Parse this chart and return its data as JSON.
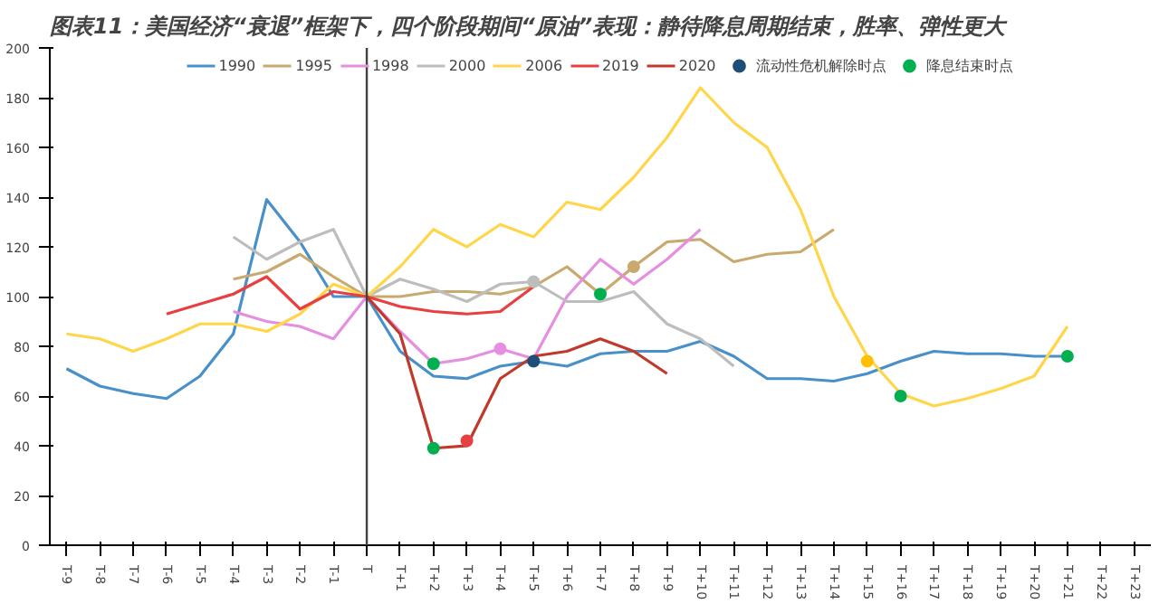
{
  "chart_data": {
    "type": "line",
    "title": "图表11：美国经济“衰退”框架下，四个阶段期间“原油”表现：静待降息周期结束，胜率、弹性更大",
    "categories": [
      "T-9",
      "T-8",
      "T-7",
      "T-6",
      "T-5",
      "T-4",
      "T-3",
      "T-2",
      "T-1",
      "T",
      "T+1",
      "T+2",
      "T+3",
      "T+4",
      "T+5",
      "T+6",
      "T+7",
      "T+8",
      "T+9",
      "T+10",
      "T+11",
      "T+12",
      "T+13",
      "T+14",
      "T+15",
      "T+16",
      "T+17",
      "T+18",
      "T+19",
      "T+20",
      "T+21",
      "T+22",
      "T+23"
    ],
    "ylim": [
      0,
      200
    ],
    "yticks": [
      0,
      20,
      40,
      60,
      80,
      100,
      120,
      140,
      160,
      180,
      200
    ],
    "grid": false,
    "legend": "top",
    "line_style": "solid",
    "marker": "none",
    "ref_lines": [
      {
        "axis": "x",
        "value": "T",
        "color": "#404040"
      }
    ],
    "series": [
      {
        "name": "1990",
        "color": "#4a90c8",
        "values": [
          71,
          64,
          61,
          59,
          68,
          85,
          139,
          122,
          100,
          100,
          78,
          68,
          67,
          72,
          74,
          72,
          77,
          78,
          78,
          82,
          76,
          67,
          67,
          66,
          69,
          74,
          78,
          77,
          77,
          76,
          76,
          null,
          null
        ]
      },
      {
        "name": "1995",
        "color": "#c8a96e",
        "values": [
          null,
          null,
          null,
          null,
          null,
          107,
          110,
          117,
          108,
          100,
          100,
          102,
          102,
          101,
          104,
          112,
          101,
          112,
          122,
          123,
          114,
          117,
          118,
          127,
          null,
          null,
          null,
          null,
          null,
          null,
          null,
          null,
          null
        ]
      },
      {
        "name": "1998",
        "color": "#e58fe0",
        "values": [
          null,
          null,
          null,
          null,
          null,
          94,
          90,
          88,
          83,
          100,
          86,
          73,
          75,
          79,
          75,
          100,
          115,
          105,
          115,
          127,
          null,
          null,
          null,
          null,
          null,
          null,
          null,
          null,
          null,
          null,
          null,
          null,
          null
        ]
      },
      {
        "name": "2000",
        "color": "#bdbdbd",
        "values": [
          null,
          null,
          null,
          null,
          null,
          124,
          115,
          122,
          127,
          100,
          107,
          103,
          98,
          105,
          106,
          98,
          98,
          102,
          89,
          83,
          72,
          null,
          null,
          null,
          null,
          null,
          null,
          null,
          null,
          null,
          null,
          null,
          null
        ]
      },
      {
        "name": "2006",
        "color": "#ffd54a",
        "values": [
          85,
          83,
          78,
          83,
          89,
          89,
          86,
          93,
          105,
          100,
          112,
          127,
          120,
          129,
          124,
          138,
          135,
          148,
          164,
          184,
          170,
          160,
          135,
          100,
          76,
          61,
          56,
          59,
          63,
          68,
          88,
          null,
          null
        ]
      },
      {
        "name": "2019",
        "color": "#e84040",
        "values": [
          null,
          null,
          null,
          93,
          97,
          101,
          108,
          95,
          102,
          100,
          96,
          94,
          93,
          94,
          104,
          null,
          null,
          null,
          null,
          null,
          null,
          null,
          null,
          null,
          null,
          null,
          null,
          null,
          null,
          null,
          null,
          null,
          null
        ]
      },
      {
        "name": "2020",
        "color": "#c0392b",
        "values": [
          null,
          null,
          null,
          null,
          null,
          null,
          null,
          null,
          null,
          100,
          85,
          39,
          40,
          67,
          76,
          78,
          83,
          78,
          69,
          null,
          null,
          null,
          null,
          null,
          null,
          null,
          null,
          null,
          null,
          null,
          null,
          null,
          null
        ]
      },
      {
        "name": "流动性危机解除时点",
        "type": "scatter",
        "marker": "circle",
        "color": "#1f4e79",
        "x": [
          "T+5",
          "T+8",
          "T+4",
          "T+5",
          "T+3",
          "T+15"
        ],
        "values": [
          74,
          112,
          79,
          106,
          42,
          74
        ],
        "colors": [
          "#1f4e79",
          "#c8a96e",
          "#e58fe0",
          "#bdbdbd",
          "#e84040",
          "#ffc000"
        ]
      },
      {
        "name": "降息结束时点",
        "type": "scatter",
        "marker": "circle",
        "color": "#00b050",
        "x": [
          "T+2",
          "T+2",
          "T+7",
          "T+16",
          "T+21"
        ],
        "values": [
          73,
          39,
          101,
          60,
          76
        ]
      }
    ]
  }
}
